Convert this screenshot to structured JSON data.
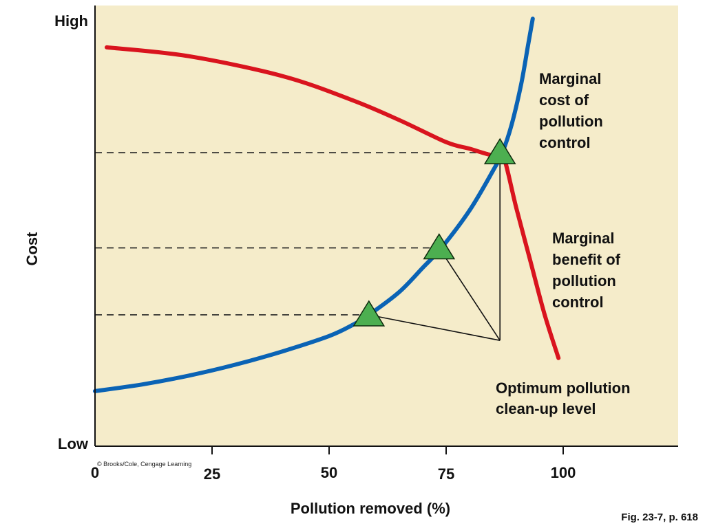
{
  "chart_data": {
    "type": "line",
    "title": "",
    "xlabel": "Pollution removed (%)",
    "ylabel": "Cost",
    "y_axis_ticks": {
      "top": "High",
      "bottom": "Low"
    },
    "xlim": [
      0,
      125
    ],
    "ylim": [
      0,
      100
    ],
    "x_ticks": [
      0,
      25,
      50,
      75,
      100
    ],
    "x_tick_labels": [
      "0",
      "25",
      "50",
      "75",
      "100"
    ],
    "grid": false,
    "background_color": "#f5ecca",
    "series": [
      {
        "name": "Marginal cost of pollution control",
        "label_lines": [
          "Marginal",
          "cost of",
          "pollution",
          "control"
        ],
        "color": "#0a63b5",
        "x": [
          0,
          10,
          20,
          30,
          40,
          50,
          55,
          58.5,
          65,
          70,
          74,
          80,
          85,
          87,
          89,
          91,
          92.5,
          93.5
        ],
        "y": [
          12.5,
          14,
          16,
          18.5,
          21.5,
          25,
          27.5,
          29.8,
          35,
          40.5,
          45,
          53.5,
          62.5,
          66.6,
          73,
          82,
          91,
          97
        ]
      },
      {
        "name": "Marginal benefit of pollution control",
        "label_lines": [
          "Marginal",
          "benefit of",
          "pollution",
          "control"
        ],
        "color": "#d9141e",
        "x": [
          2.5,
          20,
          40,
          55,
          65,
          75,
          80,
          85,
          87,
          90,
          93,
          96,
          99
        ],
        "y": [
          90.5,
          88.5,
          84,
          78.5,
          74,
          69,
          67.5,
          66,
          66.6,
          54,
          42,
          30,
          20
        ]
      }
    ],
    "optimum_points": [
      {
        "x": 58.5,
        "y": 29.8
      },
      {
        "x": 73.5,
        "y": 45
      },
      {
        "x": 86.5,
        "y": 66.6
      }
    ],
    "annotation": {
      "text_lines": [
        "Optimum pollution",
        "clean-up level"
      ],
      "anchor": {
        "x": 86.5,
        "y": 24
      }
    },
    "marker_color": "#4caf50",
    "copyright": "© Brooks/Cole, Cengage Learning",
    "figure_ref": "Fig. 23-7, p. 618"
  }
}
